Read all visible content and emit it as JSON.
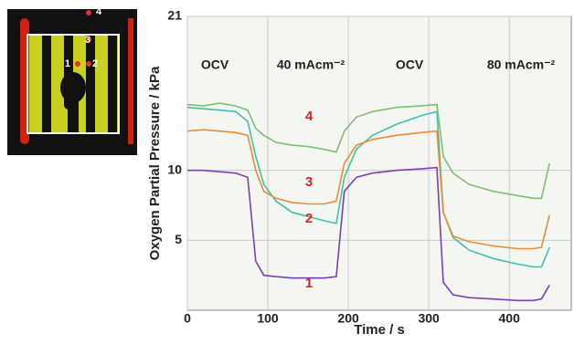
{
  "chart_data": {
    "type": "line",
    "ylabel": "Oxygen Partial Pressure / kPa",
    "xlabel": "Time / s",
    "annotations": [
      "OCV",
      "40 mAcm⁻²",
      "OCV",
      "80 mAcm⁻²"
    ],
    "x": [
      0,
      20,
      40,
      60,
      75,
      85,
      95,
      110,
      130,
      150,
      170,
      185,
      195,
      210,
      230,
      260,
      290,
      310,
      318,
      330,
      350,
      380,
      410,
      430,
      440,
      450
    ],
    "series": [
      {
        "name": "1",
        "color": "#7b3fb5",
        "values": [
          10,
          10,
          9.9,
          9.8,
          9.5,
          3.5,
          2.5,
          2.4,
          2.3,
          2.3,
          2.3,
          2.4,
          8.5,
          9.5,
          9.8,
          10,
          10.1,
          10.2,
          2,
          1.1,
          0.9,
          0.8,
          0.7,
          0.7,
          0.8,
          1.8
        ]
      },
      {
        "name": "2",
        "color": "#3fc0b0",
        "values": [
          14.5,
          14.4,
          14.3,
          14.2,
          13.5,
          11,
          9,
          7.8,
          7,
          6.7,
          6.4,
          6.2,
          9.5,
          11.5,
          12.5,
          13.3,
          13.9,
          14.2,
          7,
          5.2,
          4.3,
          3.7,
          3.3,
          3.1,
          3.1,
          4.5
        ]
      },
      {
        "name": "3",
        "color": "#f08a30",
        "values": [
          12.8,
          12.9,
          12.8,
          12.7,
          12.5,
          10,
          8.5,
          8,
          7.7,
          7.6,
          7.6,
          7.8,
          10.5,
          11.8,
          12.2,
          12.5,
          12.7,
          12.8,
          7,
          5.3,
          4.9,
          4.6,
          4.4,
          4.4,
          4.5,
          6.8
        ]
      },
      {
        "name": "4",
        "color": "#7cc070",
        "values": [
          14.7,
          14.6,
          14.8,
          14.6,
          14.3,
          13,
          12.5,
          12,
          11.8,
          11.7,
          11.5,
          11.3,
          12.8,
          13.8,
          14.2,
          14.5,
          14.6,
          14.7,
          11,
          9.8,
          9,
          8.5,
          8.2,
          8,
          8,
          10.5
        ]
      }
    ],
    "xlim": [
      0,
      477
    ],
    "xticks": [
      0,
      100,
      200,
      300,
      400
    ],
    "ylim": [
      0,
      21
    ],
    "yticks": [
      5,
      10,
      21
    ],
    "grid": true
  }
}
